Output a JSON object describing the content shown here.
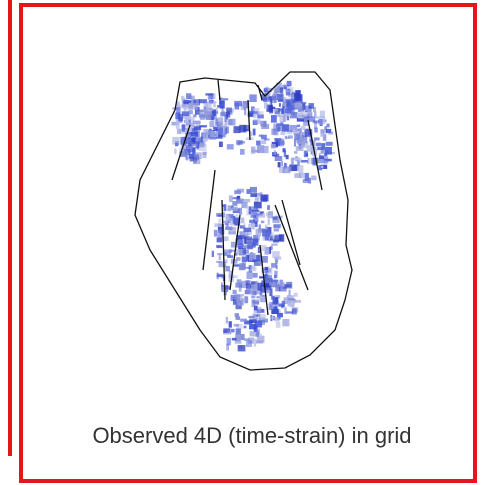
{
  "caption": "Observed 4D (time-strain) in grid"
}
